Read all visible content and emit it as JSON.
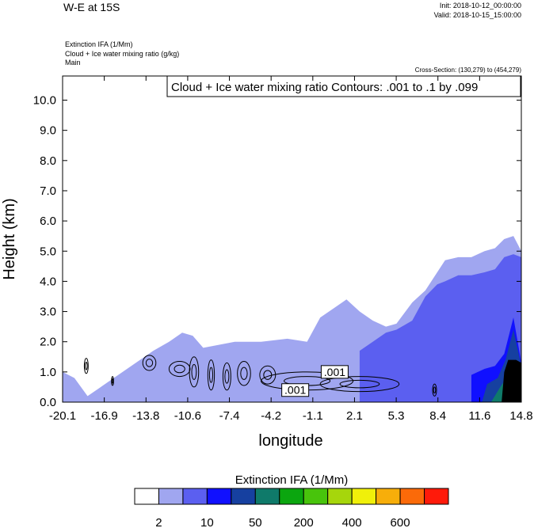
{
  "header": {
    "title": "W-E at 15S",
    "init": "Init: 2018-10-12_00:00:00",
    "valid": "Valid: 2018-10-15_15:00:00",
    "field1": "Extinction IFA   (1/Mm)",
    "field2": "Cloud + Ice water mixing ratio   (g/kg)",
    "field3": "Main",
    "cross_section": "Cross-Section: (130,279) to (454,279)"
  },
  "chart_data": {
    "type": "contour",
    "title": "Cloud + Ice water mixing ratio Contours: .001 to .1 by .099",
    "xlabel": "longitude",
    "ylabel": "Height (km)",
    "x_ticks": [
      "-20.1",
      "-16.9",
      "-13.8",
      "-10.6",
      "-7.4",
      "-4.2",
      "-1.1",
      "2.1",
      "5.3",
      "8.4",
      "11.6",
      "14.8"
    ],
    "y_ticks": [
      "0.0",
      "1.0",
      "2.0",
      "3.0",
      "4.0",
      "5.0",
      "6.0",
      "7.0",
      "8.0",
      "9.0",
      "10.0"
    ],
    "xlim": [
      -20.1,
      14.8
    ],
    "ylim": [
      0,
      10.8
    ],
    "contour_labels": [
      {
        "text": ".001",
        "x": 0.6,
        "y": 1.0
      },
      {
        "text": ".001",
        "x": -2.4,
        "y": 0.4
      }
    ],
    "extinction_profile": {
      "x": [
        -20.1,
        -19.2,
        -18.2,
        -13.2,
        -12.0,
        -11.0,
        -10.2,
        -9.4,
        -7.0,
        -5.0,
        -3.0,
        -1.5,
        -0.5,
        0.5,
        1.5,
        2.5,
        3.5,
        4.5,
        5.3,
        6.5,
        7.5,
        8.4,
        9.0,
        10.0,
        11.0,
        12.0,
        12.8,
        13.5,
        14.2,
        14.8
      ],
      "level_2_top_km": [
        1.0,
        0.8,
        0.2,
        1.7,
        2.0,
        2.3,
        2.2,
        1.8,
        2.0,
        2.0,
        2.1,
        2.0,
        2.8,
        3.1,
        3.4,
        3.0,
        2.7,
        2.5,
        2.6,
        3.3,
        3.7,
        4.3,
        4.7,
        4.8,
        4.8,
        5.0,
        5.1,
        5.4,
        5.5,
        5.0
      ],
      "level_10_top_km": [
        null,
        null,
        null,
        null,
        null,
        null,
        null,
        null,
        null,
        null,
        null,
        null,
        null,
        null,
        null,
        1.7,
        2.0,
        2.3,
        2.4,
        2.7,
        3.5,
        3.9,
        4.0,
        4.2,
        4.2,
        4.3,
        4.4,
        4.8,
        4.9,
        4.8
      ],
      "level_50_top_km": [
        null,
        null,
        null,
        null,
        null,
        null,
        null,
        null,
        null,
        null,
        null,
        null,
        null,
        null,
        null,
        null,
        null,
        null,
        null,
        null,
        null,
        null,
        null,
        null,
        0.9,
        1.1,
        1.2,
        1.6,
        2.8,
        1.3
      ]
    },
    "colorbar": {
      "label": "Extinction IFA  (1/Mm)",
      "tick_labels": [
        "2",
        "10",
        "50",
        "200",
        "400",
        "600"
      ],
      "colors": [
        "#ffffff",
        "#a0a6f0",
        "#5b5ff0",
        "#1010ff",
        "#1640a0",
        "#0f7a6a",
        "#0ba60f",
        "#48c40c",
        "#a6d60c",
        "#f0f00a",
        "#f7ae0a",
        "#fb6a09",
        "#ff1a0a"
      ]
    }
  }
}
